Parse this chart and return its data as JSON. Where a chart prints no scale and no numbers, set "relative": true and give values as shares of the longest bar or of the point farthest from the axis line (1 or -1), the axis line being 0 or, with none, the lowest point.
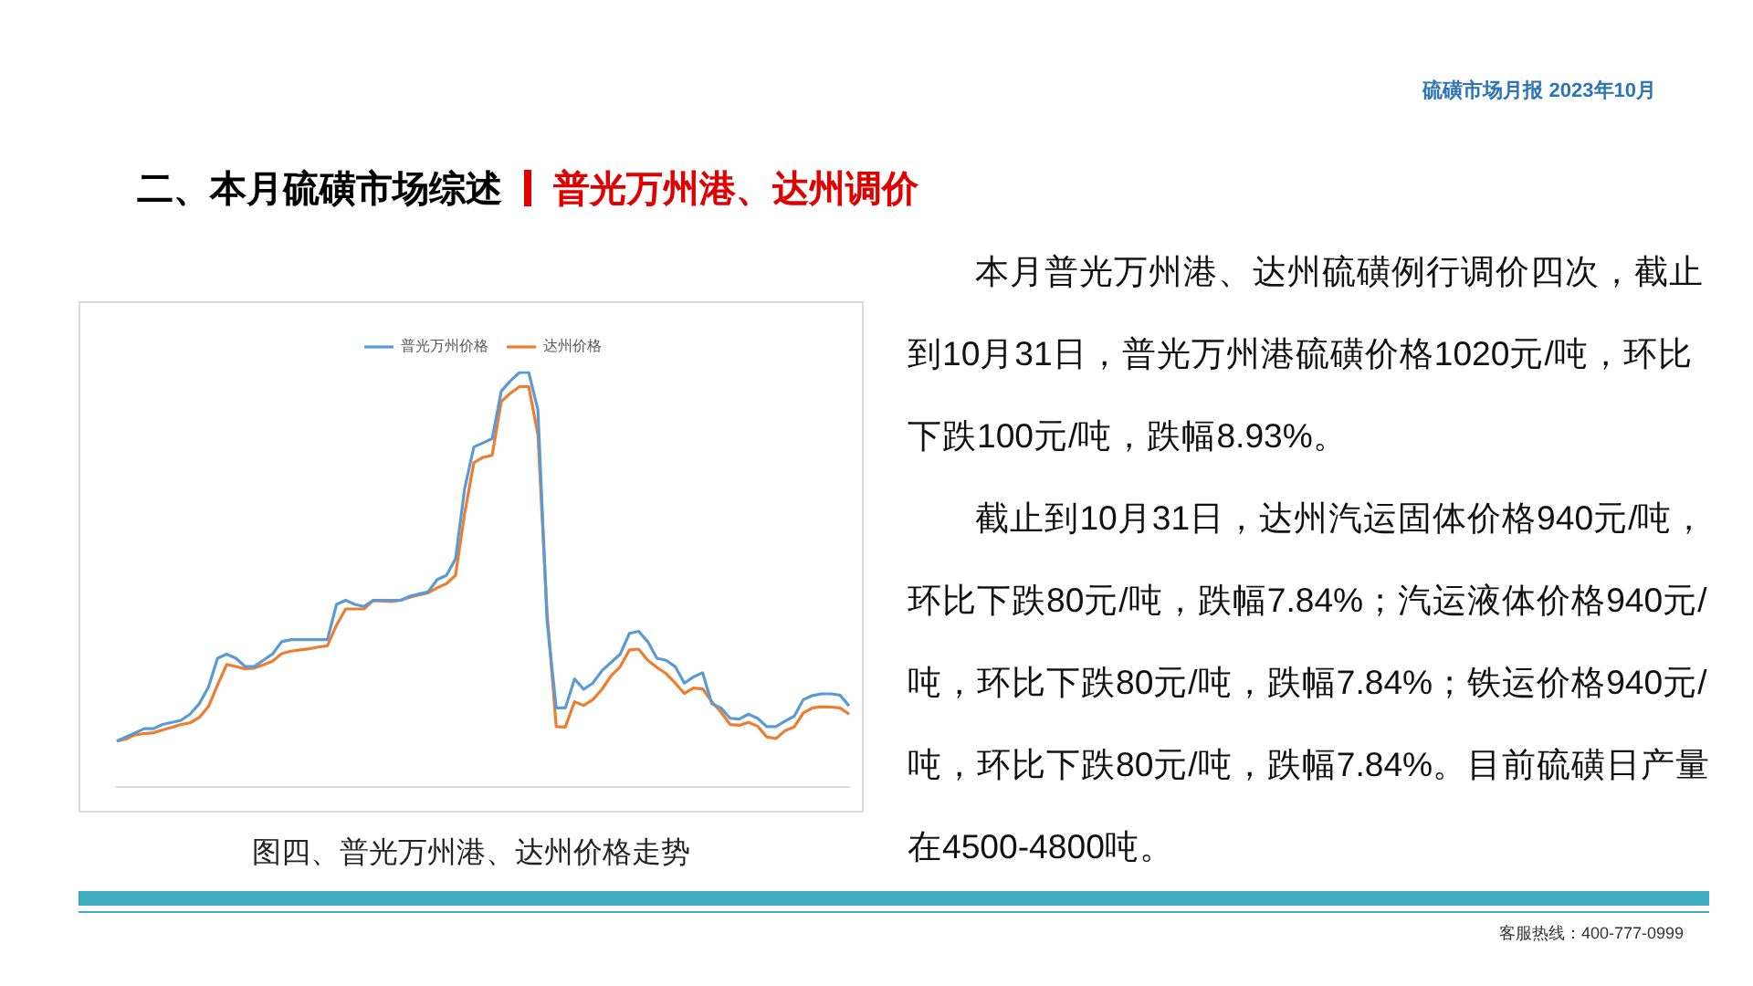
{
  "chart_data": {
    "type": "line",
    "title": "二、本月硫磺市场综述",
    "subtitle": "普光万州港、达州调价",
    "categories": [
      null,
      null,
      null,
      null,
      null,
      null,
      null,
      null,
      null,
      null,
      null,
      null,
      null,
      null,
      null,
      null,
      null,
      null,
      null,
      null,
      null,
      null,
      null,
      null,
      null,
      null,
      null,
      null,
      null,
      null,
      null,
      null,
      null,
      null,
      null,
      null,
      null,
      null,
      null,
      null,
      null,
      null,
      null,
      null,
      null,
      null,
      null,
      null,
      null,
      null,
      null,
      null,
      null,
      null,
      null,
      null,
      null,
      null,
      null,
      null,
      null,
      null,
      null,
      null,
      null,
      null,
      null,
      null,
      null,
      null,
      null,
      null,
      null,
      null,
      null,
      null,
      null,
      null,
      null,
      null,
      null
    ],
    "relative": true,
    "legend": "top",
    "series": [
      {
        "name": "普光万州价格",
        "color": "#5b9bd5",
        "values": [
          0.11,
          0.12,
          0.13,
          0.14,
          0.14,
          0.15,
          0.155,
          0.16,
          0.175,
          0.2,
          0.24,
          0.31,
          0.32,
          0.31,
          0.29,
          0.29,
          0.305,
          0.32,
          0.35,
          0.355,
          0.355,
          0.355,
          0.355,
          0.355,
          0.44,
          0.45,
          0.44,
          0.435,
          0.45,
          0.45,
          0.45,
          0.45,
          0.46,
          0.465,
          0.47,
          0.5,
          0.51,
          0.55,
          0.72,
          0.82,
          0.83,
          0.84,
          0.955,
          0.98,
          1,
          1,
          0.91,
          0.4,
          0.19,
          0.19,
          0.26,
          0.235,
          0.25,
          0.28,
          0.3,
          0.32,
          0.37,
          0.375,
          0.35,
          0.31,
          0.305,
          0.29,
          0.25,
          0.265,
          0.275,
          0.2,
          0.19,
          0.165,
          0.163,
          0.175,
          0.165,
          0.145,
          0.145,
          0.158,
          0.17,
          0.21,
          0.22,
          0.224,
          0.224,
          0.221,
          0.195
        ]
      },
      {
        "name": "达州价格",
        "color": "#ed7d31",
        "values": [
          0.11,
          0.115,
          0.125,
          0.128,
          0.13,
          0.137,
          0.143,
          0.15,
          0.154,
          0.167,
          0.193,
          0.245,
          0.295,
          0.29,
          0.284,
          0.286,
          0.294,
          0.303,
          0.321,
          0.327,
          0.33,
          0.333,
          0.337,
          0.34,
          0.39,
          0.429,
          0.429,
          0.429,
          0.449,
          0.448,
          0.447,
          0.45,
          0.457,
          0.463,
          0.468,
          0.48,
          0.49,
          0.51,
          0.66,
          0.782,
          0.795,
          0.8,
          0.93,
          0.95,
          0.966,
          0.966,
          0.85,
          0.42,
          0.145,
          0.144,
          0.205,
          0.196,
          0.21,
          0.235,
          0.268,
          0.29,
          0.33,
          0.332,
          0.305,
          0.288,
          0.273,
          0.25,
          0.225,
          0.238,
          0.236,
          0.205,
          0.18,
          0.15,
          0.148,
          0.155,
          0.146,
          0.12,
          0.116,
          0.135,
          0.144,
          0.178,
          0.19,
          0.193,
          0.192,
          0.19,
          0.175
        ]
      }
    ],
    "annotations": [
      "硫磺市场月报 2023年10月",
      "本月普光万州港、达州硫磺例行调价四次，截止到10月31日，普光万州港硫磺价格1020元/吨，环比下跌100元/吨，跌幅8.93%。",
      "截止到10月31日，达州汽运固体价格940元/吨，环比下跌80元/吨，跌幅7.84%；汽运液体价格940元/吨，环比下跌80元/吨，跌幅7.84%；铁运价格940元/吨，环比下跌80元/吨，跌幅7.84%。目前硫磺日产量在4500-4800吨。",
      "图四、普光万州港、达州价格走势",
      "客服热线：400-777-0999"
    ]
  }
}
